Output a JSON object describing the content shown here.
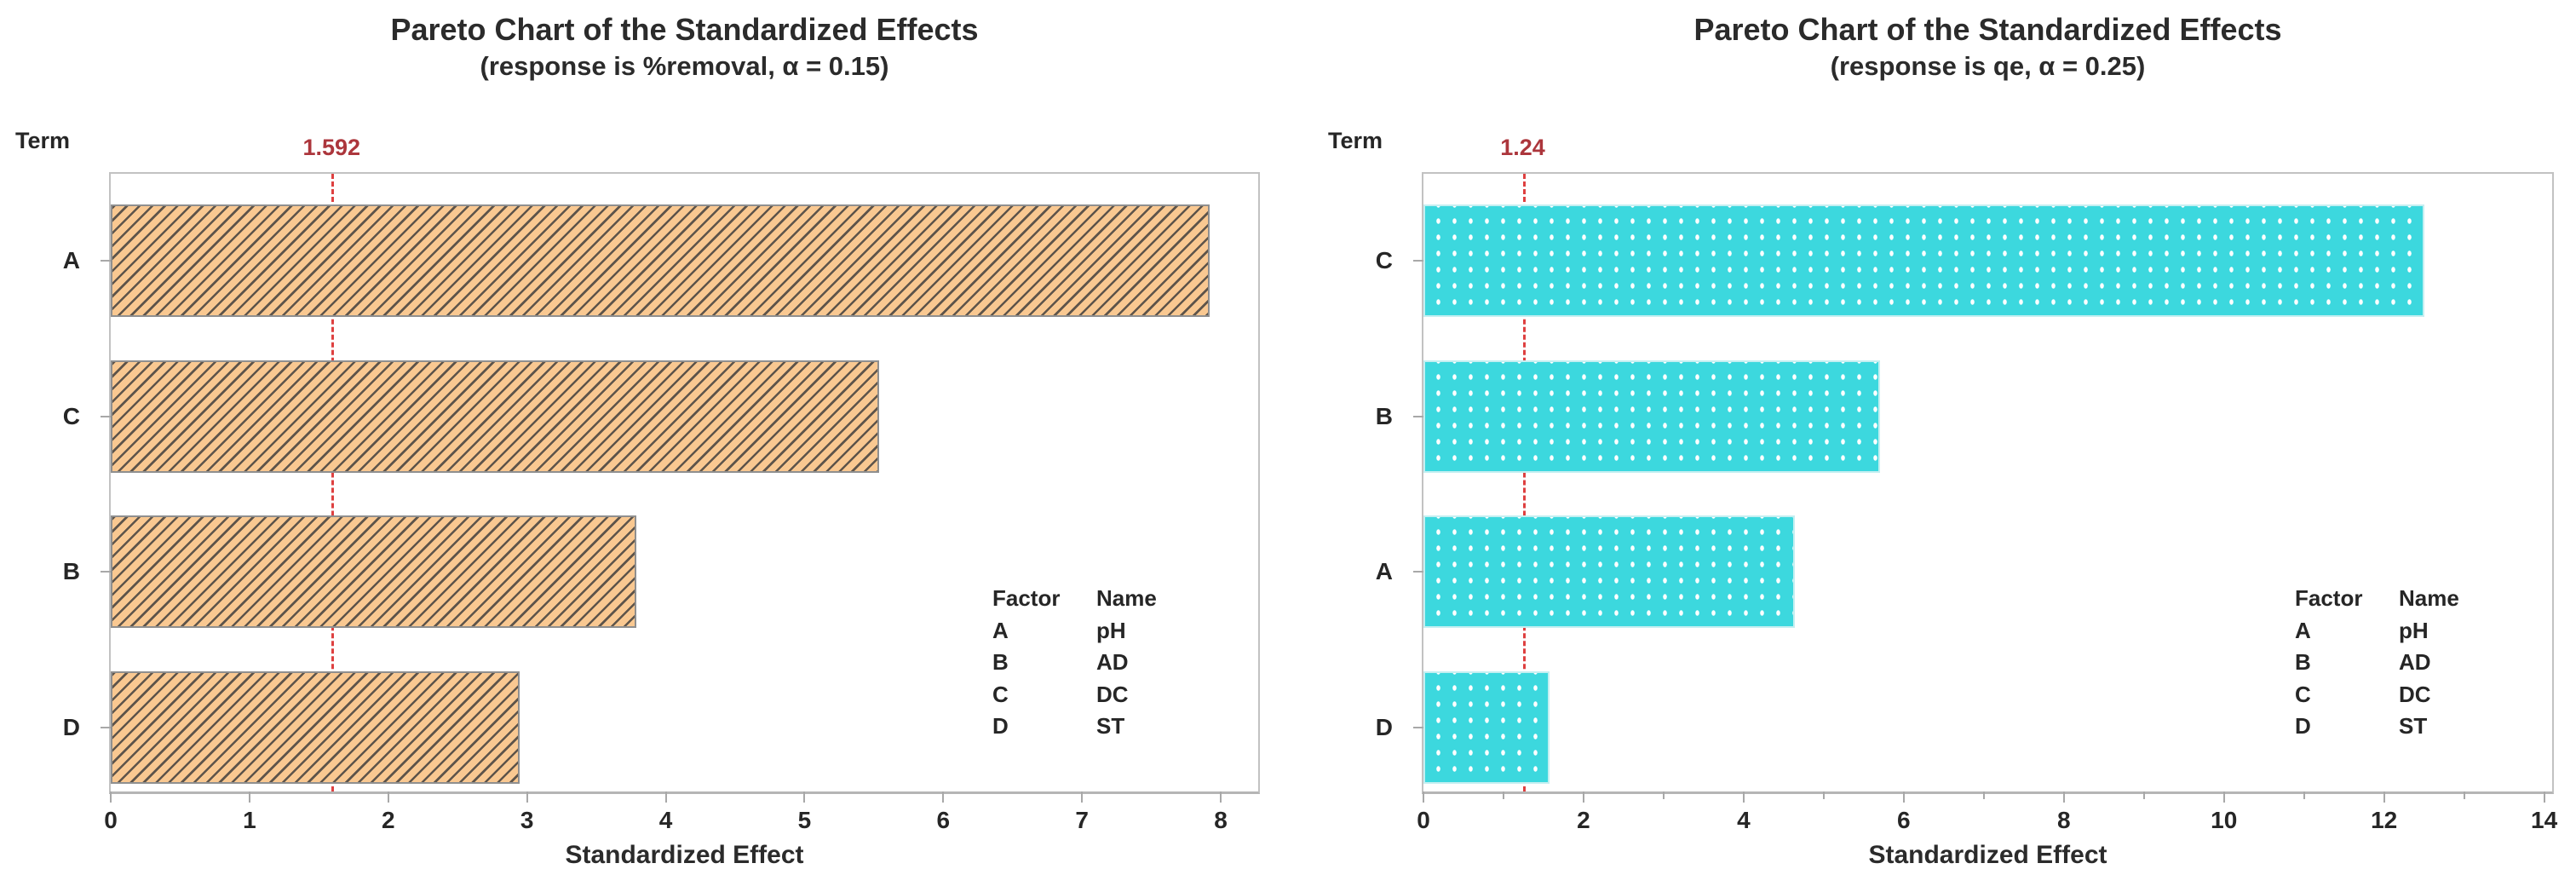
{
  "figure": {
    "background": "#ffffff",
    "text_color": "#262626",
    "axis_color": "#bdbdbd",
    "reference_line_color": "#de4040",
    "reference_label_color": "#ac363c"
  },
  "chart_data": [
    {
      "type": "bar",
      "orientation": "horizontal",
      "title": "Pareto Chart of the Standardized Effects",
      "subtitle": "(response is %removal, α = 0.15)",
      "ylabel": "Term",
      "xlabel": "Standardized Effect",
      "categories": [
        "A",
        "C",
        "B",
        "D"
      ],
      "values": [
        7.92,
        5.54,
        3.79,
        2.95
      ],
      "reference_line": 1.592,
      "reference_label": "1.592",
      "xlim": [
        0,
        8.27
      ],
      "xticks": [
        0,
        1,
        2,
        3,
        4,
        5,
        6,
        7,
        8
      ],
      "minor_xticks": [],
      "grid": "off",
      "bar_style": {
        "pattern": "diagonal-hatch",
        "fill": "#f9c891",
        "hatch_color": "#4f4b47",
        "border": "#8f8f8f"
      },
      "legend": {
        "position": "inside-right",
        "headers": [
          "Factor",
          "Name"
        ],
        "rows": [
          [
            "A",
            "pH"
          ],
          [
            "B",
            "AD"
          ],
          [
            "C",
            "DC"
          ],
          [
            "D",
            "ST"
          ]
        ]
      }
    },
    {
      "type": "bar",
      "orientation": "horizontal",
      "title": "Pareto Chart of the Standardized Effects",
      "subtitle": "(response is qe, α = 0.25)",
      "ylabel": "Term",
      "xlabel": "Standardized Effect",
      "categories": [
        "C",
        "B",
        "A",
        "D"
      ],
      "values": [
        12.5,
        5.7,
        4.64,
        1.57
      ],
      "reference_line": 1.24,
      "reference_label": "1.24",
      "xlim": [
        0,
        14.1
      ],
      "xticks": [
        0,
        2,
        4,
        6,
        8,
        10,
        12,
        14
      ],
      "minor_xticks": [
        1,
        3,
        5,
        7,
        9,
        11,
        13
      ],
      "grid": "off",
      "bar_style": {
        "pattern": "white-dots",
        "fill": "#3cd8de",
        "dot_color": "#ffffff",
        "border": "#c4eff1"
      },
      "legend": {
        "position": "inside-right",
        "headers": [
          "Factor",
          "Name"
        ],
        "rows": [
          [
            "A",
            "pH"
          ],
          [
            "B",
            "AD"
          ],
          [
            "C",
            "DC"
          ],
          [
            "D",
            "ST"
          ]
        ]
      }
    }
  ]
}
